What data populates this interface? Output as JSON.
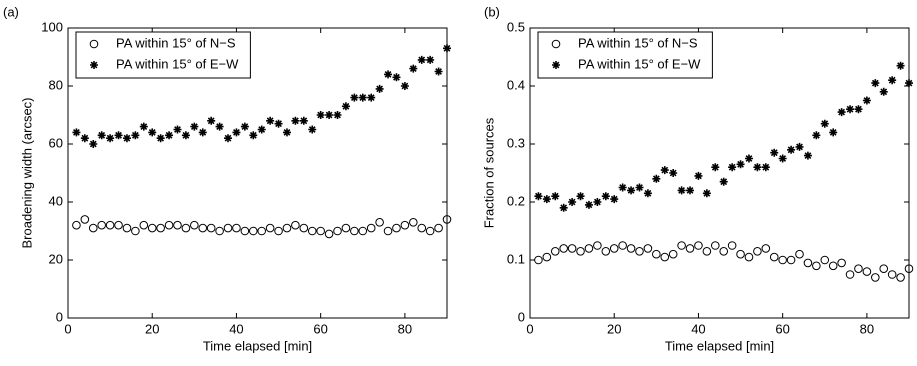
{
  "chart_data": [
    {
      "type": "scatter",
      "panel_label": "(a)",
      "xlabel": "Time elapsed [min]",
      "ylabel": "Broadening width (arcsec)",
      "x": [
        2,
        4,
        6,
        8,
        10,
        12,
        14,
        16,
        18,
        20,
        22,
        24,
        26,
        28,
        30,
        32,
        34,
        36,
        38,
        40,
        42,
        44,
        46,
        48,
        50,
        52,
        54,
        56,
        58,
        60,
        62,
        64,
        66,
        68,
        70,
        72,
        74,
        76,
        78,
        80,
        82,
        84,
        86,
        88,
        90
      ],
      "series": [
        {
          "name": "PA within 15° of N−S",
          "color": "#000000",
          "marker": "o",
          "values": [
            32,
            34,
            31,
            32,
            32,
            32,
            31,
            30,
            32,
            31,
            31,
            32,
            32,
            31,
            32,
            31,
            31,
            30,
            31,
            31,
            30,
            30,
            30,
            31,
            30,
            31,
            32,
            31,
            30,
            30,
            29,
            30,
            31,
            30,
            30,
            31,
            33,
            30,
            31,
            32,
            33,
            31,
            30,
            31,
            34
          ]
        },
        {
          "name": "PA within 15° of E−W",
          "color": "#000000",
          "marker": "*",
          "values": [
            64,
            62,
            60,
            63,
            62,
            63,
            62,
            63,
            66,
            64,
            62,
            63,
            65,
            63,
            66,
            64,
            68,
            66,
            62,
            64,
            66,
            63,
            65,
            68,
            67,
            64,
            68,
            68,
            65,
            70,
            70,
            70,
            73,
            76,
            76,
            76,
            79,
            84,
            83,
            80,
            86,
            89,
            89,
            85,
            93
          ]
        }
      ],
      "xlim": [
        0,
        90
      ],
      "ylim": [
        0,
        100
      ],
      "xticks": [
        0,
        20,
        40,
        60,
        80
      ],
      "yticks": [
        0,
        20,
        40,
        60,
        80,
        100
      ],
      "legend": "upper-left"
    },
    {
      "type": "scatter",
      "panel_label": "(b)",
      "xlabel": "Time elapsed [min]",
      "ylabel": "Fraction of sources",
      "x": [
        2,
        4,
        6,
        8,
        10,
        12,
        14,
        16,
        18,
        20,
        22,
        24,
        26,
        28,
        30,
        32,
        34,
        36,
        38,
        40,
        42,
        44,
        46,
        48,
        50,
        52,
        54,
        56,
        58,
        60,
        62,
        64,
        66,
        68,
        70,
        72,
        74,
        76,
        78,
        80,
        82,
        84,
        86,
        88,
        90
      ],
      "series": [
        {
          "name": "PA within 15° of N−S",
          "color": "#000000",
          "marker": "o",
          "values": [
            0.1,
            0.105,
            0.115,
            0.12,
            0.12,
            0.115,
            0.12,
            0.125,
            0.115,
            0.12,
            0.125,
            0.12,
            0.115,
            0.12,
            0.11,
            0.105,
            0.11,
            0.125,
            0.12,
            0.125,
            0.115,
            0.125,
            0.115,
            0.125,
            0.11,
            0.105,
            0.115,
            0.12,
            0.105,
            0.1,
            0.1,
            0.11,
            0.095,
            0.09,
            0.1,
            0.09,
            0.095,
            0.075,
            0.085,
            0.08,
            0.07,
            0.085,
            0.075,
            0.07,
            0.085
          ]
        },
        {
          "name": "PA within 15° of E−W",
          "color": "#000000",
          "marker": "*",
          "values": [
            0.21,
            0.205,
            0.21,
            0.19,
            0.2,
            0.21,
            0.195,
            0.2,
            0.21,
            0.205,
            0.225,
            0.22,
            0.225,
            0.215,
            0.24,
            0.255,
            0.25,
            0.22,
            0.22,
            0.245,
            0.215,
            0.26,
            0.235,
            0.26,
            0.265,
            0.275,
            0.26,
            0.26,
            0.285,
            0.275,
            0.29,
            0.295,
            0.28,
            0.315,
            0.335,
            0.32,
            0.355,
            0.36,
            0.36,
            0.375,
            0.405,
            0.39,
            0.41,
            0.435,
            0.405
          ]
        }
      ],
      "xlim": [
        0,
        90
      ],
      "ylim": [
        0,
        0.5
      ],
      "xticks": [
        0,
        20,
        40,
        60,
        80
      ],
      "yticks": [
        0,
        0.1,
        0.2,
        0.3,
        0.4,
        0.5
      ],
      "legend": "upper-left"
    }
  ]
}
